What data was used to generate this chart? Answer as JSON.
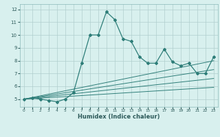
{
  "xlabel": "Humidex (Indice chaleur)",
  "x_values": [
    0,
    1,
    2,
    3,
    4,
    5,
    6,
    7,
    8,
    9,
    10,
    11,
    12,
    13,
    14,
    15,
    16,
    17,
    18,
    19,
    20,
    21,
    22,
    23
  ],
  "main_line": [
    5.0,
    5.1,
    5.0,
    4.9,
    4.8,
    5.0,
    5.5,
    7.8,
    10.0,
    10.0,
    11.8,
    11.2,
    9.7,
    9.5,
    8.3,
    7.8,
    7.8,
    8.9,
    7.9,
    7.6,
    7.8,
    7.0,
    7.0,
    8.3
  ],
  "linear_lines": [
    [
      5.0,
      5.13,
      5.26,
      5.39,
      5.52,
      5.65,
      5.78,
      5.91,
      6.04,
      6.17,
      6.3,
      6.43,
      6.56,
      6.69,
      6.82,
      6.95,
      7.08,
      7.21,
      7.34,
      7.47,
      7.6,
      7.73,
      7.86,
      7.99
    ],
    [
      5.0,
      5.1,
      5.2,
      5.3,
      5.4,
      5.5,
      5.6,
      5.7,
      5.8,
      5.9,
      6.0,
      6.1,
      6.2,
      6.3,
      6.4,
      6.5,
      6.6,
      6.7,
      6.8,
      6.9,
      7.0,
      7.1,
      7.2,
      7.3
    ],
    [
      5.0,
      5.07,
      5.14,
      5.21,
      5.28,
      5.35,
      5.42,
      5.49,
      5.56,
      5.63,
      5.7,
      5.77,
      5.84,
      5.91,
      5.98,
      6.05,
      6.12,
      6.19,
      6.26,
      6.33,
      6.4,
      6.47,
      6.54,
      6.61
    ],
    [
      5.0,
      5.04,
      5.08,
      5.12,
      5.16,
      5.2,
      5.24,
      5.28,
      5.32,
      5.36,
      5.4,
      5.44,
      5.48,
      5.52,
      5.56,
      5.6,
      5.64,
      5.68,
      5.72,
      5.76,
      5.8,
      5.84,
      5.88,
      5.92
    ]
  ],
  "line_color": "#2d7d78",
  "bg_color": "#d8f0ee",
  "grid_color": "#b0cece",
  "ylim": [
    4.4,
    12.4
  ],
  "xlim": [
    -0.5,
    23.5
  ],
  "yticks": [
    5,
    6,
    7,
    8,
    9,
    10,
    11,
    12
  ],
  "xticks": [
    0,
    1,
    2,
    3,
    4,
    5,
    6,
    7,
    8,
    9,
    10,
    11,
    12,
    13,
    14,
    15,
    16,
    17,
    18,
    19,
    20,
    21,
    22,
    23
  ]
}
